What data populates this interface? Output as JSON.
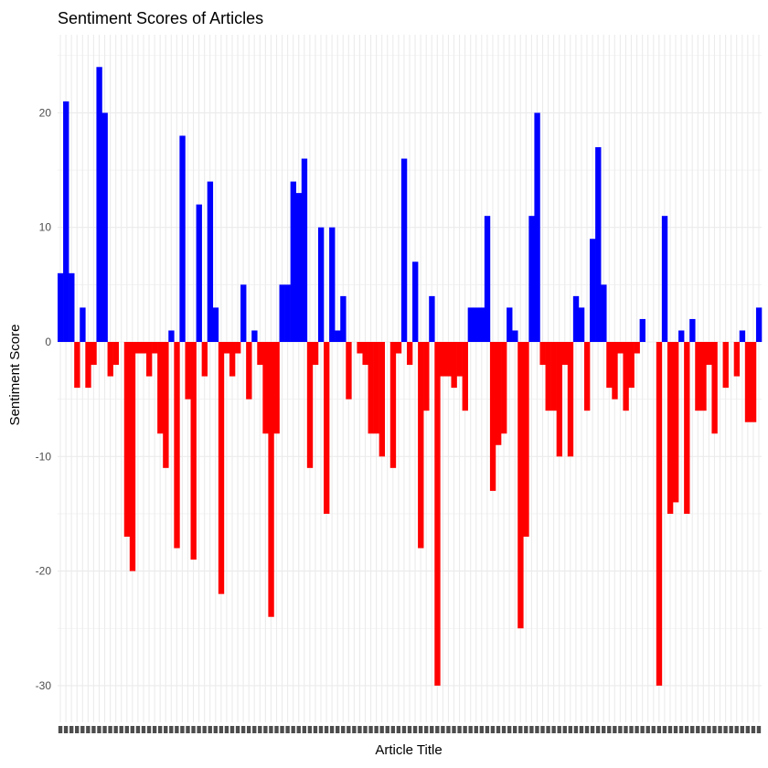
{
  "chart_data": {
    "type": "bar",
    "title": "Sentiment Scores of Articles",
    "xlabel": "Article Title",
    "ylabel": "Sentiment Score",
    "ylim": [
      -32,
      26
    ],
    "yticks": [
      20,
      10,
      0,
      -10,
      -20,
      -30
    ],
    "grid": true,
    "legend": "none",
    "colors": {
      "positive": "#0000ff",
      "negative": "#ff0000"
    },
    "x_tick_labels_note": "",
    "values": [
      6,
      21,
      6,
      -4,
      3,
      -4,
      -2,
      24,
      20,
      -3,
      -2,
      0,
      -17,
      -20,
      -1,
      -1,
      -3,
      -1,
      -8,
      -11,
      1,
      -18,
      18,
      -5,
      -19,
      12,
      -3,
      14,
      3,
      -22,
      -1,
      -3,
      -1,
      5,
      -5,
      1,
      -2,
      -8,
      -24,
      -8,
      5,
      5,
      14,
      13,
      16,
      -11,
      -2,
      10,
      -15,
      10,
      1,
      4,
      -5,
      0,
      -1,
      -2,
      -8,
      -8,
      -10,
      0,
      -11,
      -1,
      16,
      -2,
      7,
      -18,
      -6,
      4,
      -30,
      -3,
      -3,
      -4,
      -3,
      -6,
      3,
      3,
      3,
      11,
      -13,
      -9,
      -8,
      3,
      1,
      -25,
      -17,
      11,
      20,
      -2,
      -6,
      -6,
      -10,
      -2,
      -10,
      4,
      3,
      -6,
      9,
      17,
      5,
      -4,
      -5,
      -1,
      -6,
      -4,
      -1,
      2,
      0,
      0,
      -30,
      11,
      -15,
      -14,
      1,
      -15,
      2,
      -6,
      -6,
      -2,
      -8,
      0,
      -4,
      0,
      -3,
      1,
      -7,
      -7,
      3
    ]
  }
}
